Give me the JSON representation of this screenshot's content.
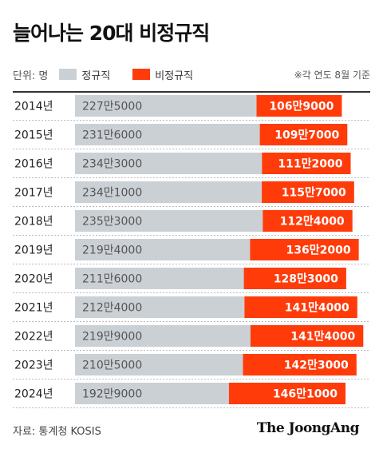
{
  "title": "늘어나는 20대 비정규직",
  "legend": {
    "unit": "단위: 명",
    "regular_label": "정규직",
    "irregular_label": "비정규직",
    "note": "※각 연도 8월 기준"
  },
  "colors": {
    "regular": "#cbd0d5",
    "irregular": "#ff3b0a"
  },
  "source": "자료: 통계청 KOSIS",
  "brand": "The JoongAng",
  "chart_data": {
    "type": "bar",
    "stacked": true,
    "orientation": "horizontal",
    "title": "늘어나는 20대 비정규직",
    "unit": "명",
    "categories": [
      "2014년",
      "2015년",
      "2016년",
      "2017년",
      "2018년",
      "2019년",
      "2020년",
      "2021년",
      "2022년",
      "2023년",
      "2024년"
    ],
    "series": [
      {
        "name": "정규직",
        "values": [
          2275000,
          2316000,
          2343000,
          2341000,
          2353000,
          2194000,
          2116000,
          2124000,
          2199000,
          2105000,
          1929000
        ],
        "labels": [
          "227만5000",
          "231만6000",
          "234만3000",
          "234만1000",
          "235만3000",
          "219만4000",
          "211만6000",
          "212만4000",
          "219만9000",
          "210만5000",
          "192만9000"
        ]
      },
      {
        "name": "비정규직",
        "values": [
          1069000,
          1097000,
          1112000,
          1157000,
          1124000,
          1362000,
          1283000,
          1414000,
          1414000,
          1423000,
          1461000
        ],
        "labels": [
          "106만9000",
          "109만7000",
          "111만2000",
          "115만7000",
          "112만4000",
          "136만2000",
          "128만3000",
          "141만4000",
          "141만4000",
          "142만3000",
          "146만1000"
        ]
      }
    ]
  }
}
